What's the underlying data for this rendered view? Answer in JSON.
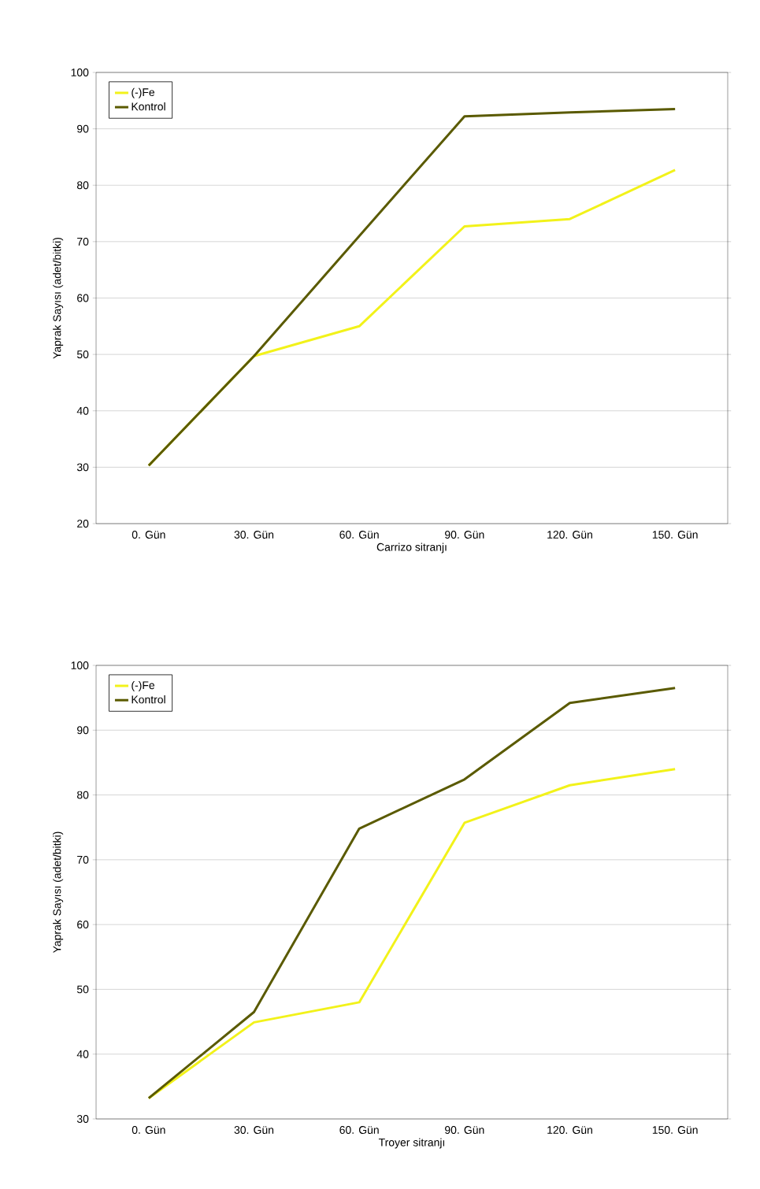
{
  "chart_data": [
    {
      "type": "line",
      "xlabel": "Carrizo sitranjı",
      "ylabel": "Yaprak Sayısı (adet/bitki)",
      "categories": [
        "0. Gün",
        "30. Gün",
        "60. Gün",
        "90. Gün",
        "120. Gün",
        "150. Gün"
      ],
      "series": [
        {
          "name": "(-)Fe",
          "color": "#f2f21a",
          "values": [
            30.3,
            49.7,
            55,
            72.7,
            74,
            82.7
          ]
        },
        {
          "name": "Kontrol",
          "color": "#5a5a00",
          "values": [
            30.3,
            49.7,
            71,
            92.2,
            92.9,
            93.5
          ]
        }
      ],
      "ylim": [
        20,
        100
      ],
      "yticks": [
        20,
        30,
        40,
        50,
        60,
        70,
        80,
        90,
        100
      ],
      "grid": "y",
      "legend": "top left"
    },
    {
      "type": "line",
      "xlabel": "Troyer sitranjı",
      "ylabel": "Yaprak Sayısı (adet/bitki)",
      "categories": [
        "0. Gün",
        "30. Gün",
        "60. Gün",
        "90. Gün",
        "120. Gün",
        "150. Gün"
      ],
      "series": [
        {
          "name": "(-)Fe",
          "color": "#f2f21a",
          "values": [
            33.2,
            44.9,
            48,
            75.7,
            81.5,
            84
          ]
        },
        {
          "name": "Kontrol",
          "color": "#5a5a00",
          "values": [
            33.2,
            46.5,
            74.8,
            82.4,
            94.2,
            96.5
          ]
        }
      ],
      "ylim": [
        30,
        100
      ],
      "yticks": [
        30,
        40,
        50,
        60,
        70,
        80,
        90,
        100
      ],
      "grid": "y",
      "legend": "top left"
    }
  ]
}
